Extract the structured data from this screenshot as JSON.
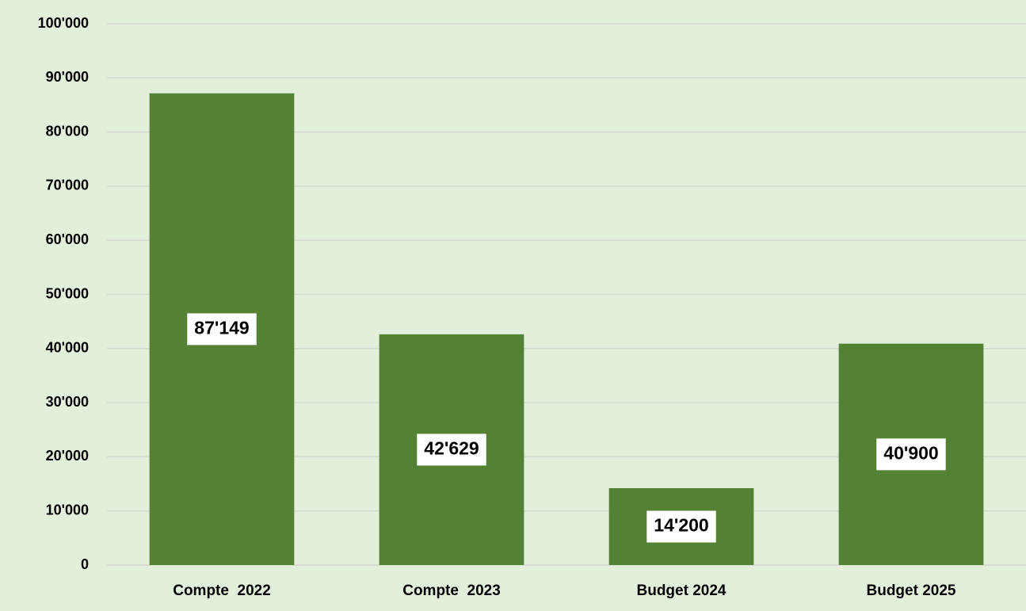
{
  "chart_data": {
    "type": "bar",
    "categories": [
      "Compte  2022",
      "Compte  2023",
      "Budget 2024",
      "Budget 2025"
    ],
    "values": [
      87149,
      42629,
      14200,
      40900
    ],
    "value_labels": [
      "87'149",
      "42'629",
      "14'200",
      "40'900"
    ],
    "color": "#548235",
    "ylim": [
      0,
      100000
    ],
    "yticks": [
      0,
      {
        "value": 10000,
        "label": "10'000"
      },
      {
        "value": 20000,
        "label": "20'000"
      },
      {
        "value": 30000,
        "label": "30'000"
      },
      {
        "value": 40000,
        "label": "40'000"
      },
      {
        "value": 50000,
        "label": "50'000"
      },
      {
        "value": 60000,
        "label": "60'000"
      },
      {
        "value": 70000,
        "label": "70'000"
      },
      {
        "value": 80000,
        "label": "80'000"
      },
      {
        "value": 90000,
        "label": "90'000"
      },
      {
        "value": 100000,
        "label": "100'000"
      }
    ],
    "grid": true
  }
}
